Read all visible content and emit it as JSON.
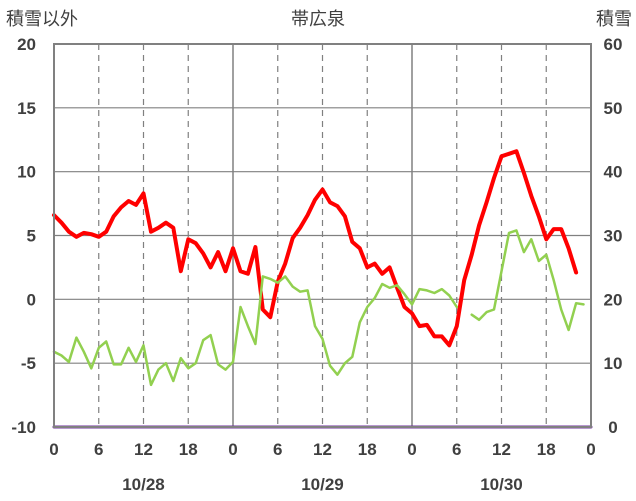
{
  "chart_data": {
    "type": "line",
    "title": "帯広泉",
    "y_left_label": "積雪以外",
    "y_right_label": "積雪",
    "y_left_range": [
      -10,
      20
    ],
    "y_left_ticks": [
      "20",
      "15",
      "10",
      "5",
      "0",
      "-5",
      "-10"
    ],
    "y_right_range": [
      0,
      60
    ],
    "y_right_ticks": [
      "60",
      "50",
      "40",
      "30",
      "20",
      "10",
      "0"
    ],
    "x_range_hours": [
      0,
      72
    ],
    "x_ticks": [
      "0",
      "6",
      "12",
      "18",
      "0",
      "6",
      "12",
      "18",
      "0",
      "6",
      "12",
      "18",
      "0"
    ],
    "date_labels": [
      "10/28",
      "10/29",
      "10/30"
    ],
    "grid": true,
    "colors": {
      "series1": "#ff0000",
      "series2": "#92d050",
      "series3": "#7030a0",
      "frame": "#808080"
    },
    "series": [
      {
        "axis": "left",
        "color": "#ff0000",
        "points": [
          [
            0,
            6.6
          ],
          [
            1,
            6.0
          ],
          [
            2,
            5.3
          ],
          [
            3,
            4.9
          ],
          [
            4,
            5.2
          ],
          [
            5,
            5.1
          ],
          [
            6,
            4.9
          ],
          [
            7,
            5.3
          ],
          [
            8,
            6.5
          ],
          [
            9,
            7.2
          ],
          [
            10,
            7.7
          ],
          [
            11,
            7.4
          ],
          [
            12,
            8.3
          ],
          [
            13,
            5.3
          ],
          [
            14,
            5.6
          ],
          [
            15,
            6.0
          ],
          [
            16,
            5.6
          ],
          [
            17,
            2.2
          ],
          [
            18,
            4.7
          ],
          [
            19,
            4.4
          ],
          [
            20,
            3.6
          ],
          [
            21,
            2.5
          ],
          [
            22,
            3.7
          ],
          [
            23,
            2.2
          ],
          [
            24,
            4.0
          ],
          [
            25,
            2.2
          ],
          [
            26,
            2.0
          ],
          [
            27,
            4.1
          ],
          [
            28,
            -0.8
          ],
          [
            29,
            -1.4
          ],
          [
            30,
            1.4
          ],
          [
            31,
            2.8
          ],
          [
            32,
            4.8
          ],
          [
            33,
            5.6
          ],
          [
            34,
            6.6
          ],
          [
            35,
            7.8
          ],
          [
            36,
            8.6
          ],
          [
            37,
            7.6
          ],
          [
            38,
            7.3
          ],
          [
            39,
            6.5
          ],
          [
            40,
            4.5
          ],
          [
            41,
            4.0
          ],
          [
            42,
            2.5
          ],
          [
            43,
            2.8
          ],
          [
            44,
            2.0
          ],
          [
            45,
            2.5
          ],
          [
            46,
            0.9
          ],
          [
            47,
            -0.6
          ],
          [
            48,
            -1.1
          ],
          [
            49,
            -2.1
          ],
          [
            50,
            -2.0
          ],
          [
            51,
            -2.9
          ],
          [
            52,
            -2.9
          ],
          [
            53,
            -3.6
          ],
          [
            54,
            -2.1
          ],
          [
            55,
            1.5
          ],
          [
            56,
            3.5
          ],
          [
            57,
            5.8
          ],
          [
            58,
            7.6
          ],
          [
            59,
            9.5
          ],
          [
            60,
            11.2
          ],
          [
            61,
            11.4
          ],
          [
            62,
            11.6
          ],
          [
            63,
            9.9
          ],
          [
            64,
            8.1
          ],
          [
            65,
            6.5
          ],
          [
            66,
            4.7
          ],
          [
            67,
            5.5
          ],
          [
            68,
            5.5
          ],
          [
            69,
            4.0
          ],
          [
            70,
            2.1
          ]
        ]
      },
      {
        "axis": "left",
        "color": "#92d050",
        "points": [
          [
            0,
            -4.1
          ],
          [
            1,
            -4.4
          ],
          [
            2,
            -4.9
          ],
          [
            3,
            -3.0
          ],
          [
            4,
            -4.1
          ],
          [
            5,
            -5.4
          ],
          [
            6,
            -3.8
          ],
          [
            7,
            -3.3
          ],
          [
            8,
            -5.1
          ],
          [
            9,
            -5.1
          ],
          [
            10,
            -3.8
          ],
          [
            11,
            -4.9
          ],
          [
            12,
            -3.6
          ],
          [
            13,
            -6.7
          ],
          [
            14,
            -5.5
          ],
          [
            15,
            -5.0
          ],
          [
            16,
            -6.4
          ],
          [
            17,
            -4.6
          ],
          [
            18,
            -5.4
          ],
          [
            19,
            -5.0
          ],
          [
            20,
            -3.2
          ],
          [
            21,
            -2.8
          ],
          [
            22,
            -5.1
          ],
          [
            23,
            -5.5
          ],
          [
            24,
            -4.9
          ],
          [
            25,
            -0.6
          ],
          [
            26,
            -2.1
          ],
          [
            27,
            -3.5
          ],
          [
            28,
            1.8
          ],
          [
            29,
            1.6
          ],
          [
            30,
            1.3
          ],
          [
            31,
            1.8
          ],
          [
            32,
            1.0
          ],
          [
            33,
            0.6
          ],
          [
            34,
            0.7
          ],
          [
            35,
            -2.1
          ],
          [
            36,
            -3.1
          ],
          [
            37,
            -5.2
          ],
          [
            38,
            -5.9
          ],
          [
            39,
            -5.0
          ],
          [
            40,
            -4.5
          ],
          [
            41,
            -1.8
          ],
          [
            42,
            -0.6
          ],
          [
            43,
            0.1
          ],
          [
            44,
            1.2
          ],
          [
            45,
            0.9
          ],
          [
            46,
            1.1
          ],
          [
            47,
            0.4
          ],
          [
            48,
            -0.4
          ],
          [
            49,
            0.8
          ],
          [
            50,
            0.7
          ],
          [
            51,
            0.5
          ],
          [
            52,
            0.8
          ],
          [
            53,
            0.3
          ],
          [
            54,
            -0.6
          ],
          null,
          [
            56,
            -1.2
          ],
          [
            57,
            -1.6
          ],
          [
            58,
            -1.0
          ],
          [
            59,
            -0.8
          ],
          [
            60,
            2.2
          ],
          [
            61,
            5.2
          ],
          [
            62,
            5.4
          ],
          [
            63,
            3.7
          ],
          [
            64,
            4.7
          ],
          [
            65,
            3.0
          ],
          [
            66,
            3.5
          ],
          [
            67,
            1.5
          ],
          [
            68,
            -0.8
          ],
          [
            69,
            -2.4
          ],
          [
            70,
            -0.3
          ],
          [
            71,
            -0.4
          ]
        ]
      },
      {
        "axis": "left",
        "color": "#7030a0",
        "points": [
          [
            0,
            -10
          ],
          [
            72,
            -10
          ]
        ]
      }
    ]
  }
}
